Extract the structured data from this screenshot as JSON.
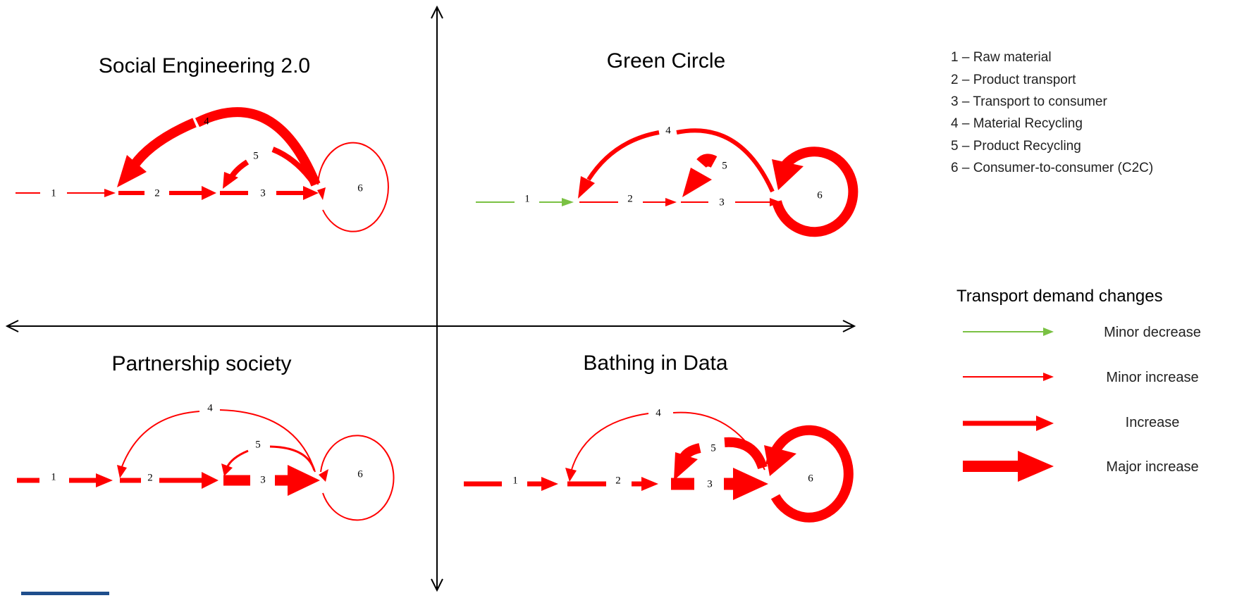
{
  "quadrants": [
    {
      "title": "Social Engineering 2.0",
      "nodes": [
        "1",
        "2",
        "3",
        "4",
        "5",
        "6"
      ]
    },
    {
      "title": "Green Circle",
      "nodes": [
        "1",
        "2",
        "3",
        "4",
        "5",
        "6"
      ]
    },
    {
      "title": "Partnership society",
      "nodes": [
        "1",
        "2",
        "3",
        "4",
        "5",
        "6"
      ]
    },
    {
      "title": "Bathing in Data",
      "nodes": [
        "1",
        "2",
        "3",
        "4",
        "5",
        "6"
      ]
    }
  ],
  "key": [
    "1 – Raw material",
    "2 – Product transport",
    "3 – Transport to consumer",
    "4 – Material Recycling",
    "5 – Product Recycling",
    "6 – Consumer-to-consumer (C2C)"
  ],
  "legend": {
    "title": "Transport demand changes",
    "items": [
      {
        "label": "Minor decrease",
        "color": "#7ac143"
      },
      {
        "label": "Minor increase",
        "color": "#ff0000"
      },
      {
        "label": "Increase",
        "color": "#ff0000"
      },
      {
        "label": "Major increase",
        "color": "#ff0000"
      }
    ]
  },
  "colors": {
    "axis": "#000000",
    "increase": "#ff0000",
    "decrease": "#7ac143",
    "accent_bar": "#1f4e8c"
  }
}
